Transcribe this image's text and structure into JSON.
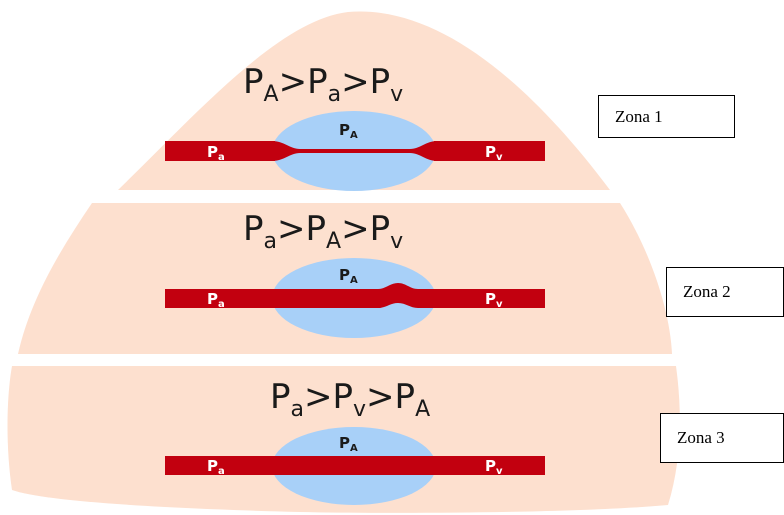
{
  "colors": {
    "lung": "#fde0cf",
    "vessel": "#c2000f",
    "alveolus": "#a8d0f8"
  },
  "zones": [
    {
      "label": "Zona 1",
      "equation": {
        "a": "P",
        "a_sub": "A",
        "b": "P",
        "b_sub": "a",
        "c": "P",
        "c_sub": "v",
        "op": ">"
      },
      "alveolus_label": {
        "base": "P",
        "sub": "A"
      },
      "left_label": {
        "base": "P",
        "sub": "a"
      },
      "right_label": {
        "base": "P",
        "sub": "v"
      },
      "state": "collapsed"
    },
    {
      "label": "Zona 2",
      "equation": {
        "a": "P",
        "a_sub": "a",
        "b": "P",
        "b_sub": "A",
        "c": "P",
        "c_sub": "v",
        "op": ">"
      },
      "alveolus_label": {
        "base": "P",
        "sub": "A"
      },
      "left_label": {
        "base": "P",
        "sub": "a"
      },
      "right_label": {
        "base": "P",
        "sub": "v"
      },
      "state": "partial"
    },
    {
      "label": "Zona 3",
      "equation": {
        "a": "P",
        "a_sub": "a",
        "b": "P",
        "b_sub": "v",
        "c": "P",
        "c_sub": "A",
        "op": ">"
      },
      "alveolus_label": {
        "base": "P",
        "sub": "A"
      },
      "left_label": {
        "base": "P",
        "sub": "a"
      },
      "right_label": {
        "base": "P",
        "sub": "v"
      },
      "state": "open"
    }
  ]
}
